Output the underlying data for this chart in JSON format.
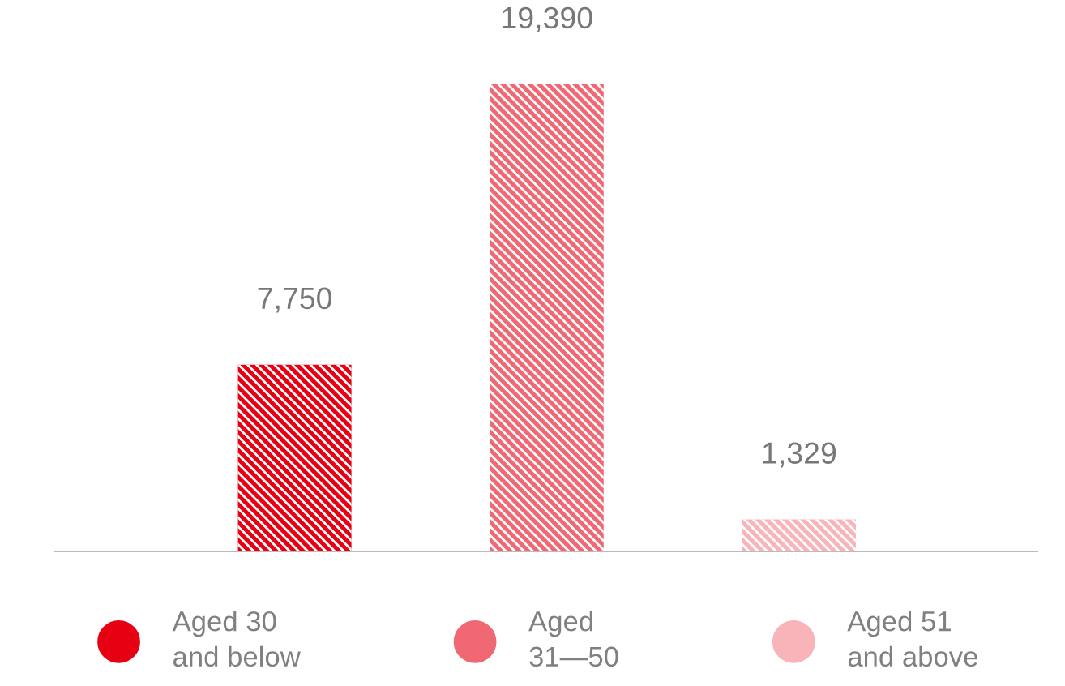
{
  "chart_data": {
    "type": "bar",
    "categories": [
      null,
      null,
      null
    ],
    "stacked": true,
    "tick_labels": false,
    "legend": "bottom",
    "marker": "circle",
    "series": [
      {
        "name": "Aged 30\nand below",
        "color": "#e60012",
        "values": [
          7750,
          null,
          null
        ],
        "value_labels": [
          "7,750",
          null,
          null
        ]
      },
      {
        "name": "Aged\n31—50",
        "color": "#f06873",
        "values": [
          null,
          19390,
          null
        ],
        "value_labels": [
          null,
          "19,390",
          null
        ]
      },
      {
        "name": "Aged 51\nand above",
        "color": "#f8b4b8",
        "values": [
          null,
          null,
          1329
        ],
        "value_labels": [
          null,
          null,
          "1,329"
        ]
      }
    ]
  }
}
